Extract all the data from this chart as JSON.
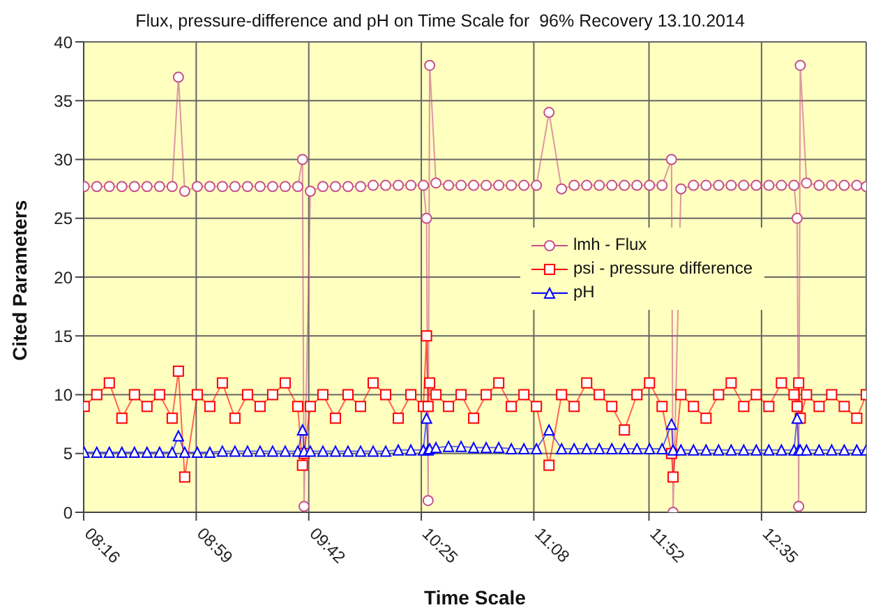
{
  "chart_data": {
    "type": "line",
    "title": "Flux, pressure-difference and pH on Time Scale for  96% Recovery 13.10.2014",
    "xlabel": "Time Scale",
    "ylabel": "Cited Parameters",
    "x": [
      8.27,
      8.35,
      8.43,
      8.51,
      8.59,
      8.67,
      8.75,
      8.83,
      8.87,
      8.91,
      8.99,
      9.07,
      9.15,
      9.23,
      9.31,
      9.39,
      9.47,
      9.55,
      9.63,
      9.66,
      9.67,
      9.71,
      9.79,
      9.87,
      9.95,
      10.03,
      10.11,
      10.19,
      10.27,
      10.35,
      10.43,
      10.45,
      10.46,
      10.47,
      10.51,
      10.59,
      10.67,
      10.75,
      10.83,
      10.91,
      10.99,
      11.07,
      11.15,
      11.23,
      11.31,
      11.39,
      11.47,
      11.55,
      11.63,
      11.71,
      11.79,
      11.87,
      11.95,
      12.01,
      12.02,
      12.07,
      12.15,
      12.23,
      12.31,
      12.39,
      12.47,
      12.55,
      12.63,
      12.71,
      12.79,
      12.81,
      12.82,
      12.83,
      12.87,
      12.95,
      13.03,
      13.11,
      13.19,
      13.25
    ],
    "series": [
      {
        "name": "lmh - Flux",
        "color": "#c8508c",
        "marker": "circle",
        "values": [
          27.7,
          27.7,
          27.7,
          27.7,
          27.7,
          27.7,
          27.7,
          27.7,
          37,
          27.3,
          27.7,
          27.7,
          27.7,
          27.7,
          27.7,
          27.7,
          27.7,
          27.7,
          27.7,
          30,
          0.5,
          27.3,
          27.7,
          27.7,
          27.7,
          27.7,
          27.8,
          27.8,
          27.8,
          27.8,
          27.8,
          25,
          1,
          38,
          28,
          27.8,
          27.8,
          27.8,
          27.8,
          27.8,
          27.8,
          27.8,
          27.8,
          34,
          27.5,
          27.8,
          27.8,
          27.8,
          27.8,
          27.8,
          27.8,
          27.8,
          27.8,
          30,
          0,
          27.5,
          27.8,
          27.8,
          27.8,
          27.8,
          27.8,
          27.8,
          27.8,
          27.8,
          27.8,
          25,
          0.5,
          38,
          28,
          27.8,
          27.8,
          27.8,
          27.8,
          27.7
        ]
      },
      {
        "name": "psi - pressure difference",
        "color": "#ff0000",
        "marker": "square",
        "values": [
          9,
          10,
          11,
          8,
          10,
          9,
          10,
          8,
          12,
          3,
          10,
          9,
          11,
          8,
          10,
          9,
          10,
          11,
          9,
          4,
          5,
          9,
          10,
          8,
          10,
          9,
          11,
          10,
          8,
          10,
          9,
          15,
          9,
          11,
          10,
          9,
          10,
          8,
          10,
          11,
          9,
          10,
          9,
          4,
          10,
          9,
          11,
          10,
          9,
          7,
          10,
          11,
          9,
          5,
          3,
          10,
          9,
          8,
          10,
          11,
          9,
          10,
          9,
          11,
          10,
          9,
          11,
          8,
          10,
          9,
          10,
          9,
          8,
          10
        ]
      },
      {
        "name": "pH",
        "color": "#0000ff",
        "marker": "triangle",
        "values": [
          5.1,
          5.1,
          5.1,
          5.1,
          5.1,
          5.1,
          5.1,
          5.1,
          6.5,
          5.1,
          5.1,
          5.1,
          5.2,
          5.2,
          5.2,
          5.2,
          5.2,
          5.2,
          5.2,
          7,
          5.2,
          5.2,
          5.2,
          5.2,
          5.2,
          5.2,
          5.2,
          5.2,
          5.3,
          5.3,
          5.3,
          8,
          5.3,
          5.4,
          5.5,
          5.6,
          5.6,
          5.5,
          5.5,
          5.5,
          5.4,
          5.4,
          5.4,
          7,
          5.4,
          5.4,
          5.4,
          5.4,
          5.4,
          5.4,
          5.4,
          5.4,
          5.4,
          7.5,
          5.3,
          5.3,
          5.3,
          5.3,
          5.3,
          5.3,
          5.3,
          5.3,
          5.3,
          5.3,
          5.3,
          8,
          5.3,
          5.3,
          5.3,
          5.3,
          5.3,
          5.3,
          5.3,
          5.3
        ]
      }
    ],
    "xlim": [
      8.2667,
      13.25
    ],
    "xticks": [
      {
        "value": 8.2667,
        "label": "08:16"
      },
      {
        "value": 8.9833,
        "label": "08:59"
      },
      {
        "value": 9.7,
        "label": "09:42"
      },
      {
        "value": 10.4167,
        "label": "10:25"
      },
      {
        "value": 11.1333,
        "label": "11:08"
      },
      {
        "value": 11.8667,
        "label": "11:52"
      },
      {
        "value": 12.5833,
        "label": "12:35"
      }
    ],
    "ylim": [
      0,
      40
    ],
    "yticks": [
      0,
      5,
      10,
      15,
      20,
      25,
      30,
      35,
      40
    ],
    "grid": true,
    "legend": "right"
  }
}
